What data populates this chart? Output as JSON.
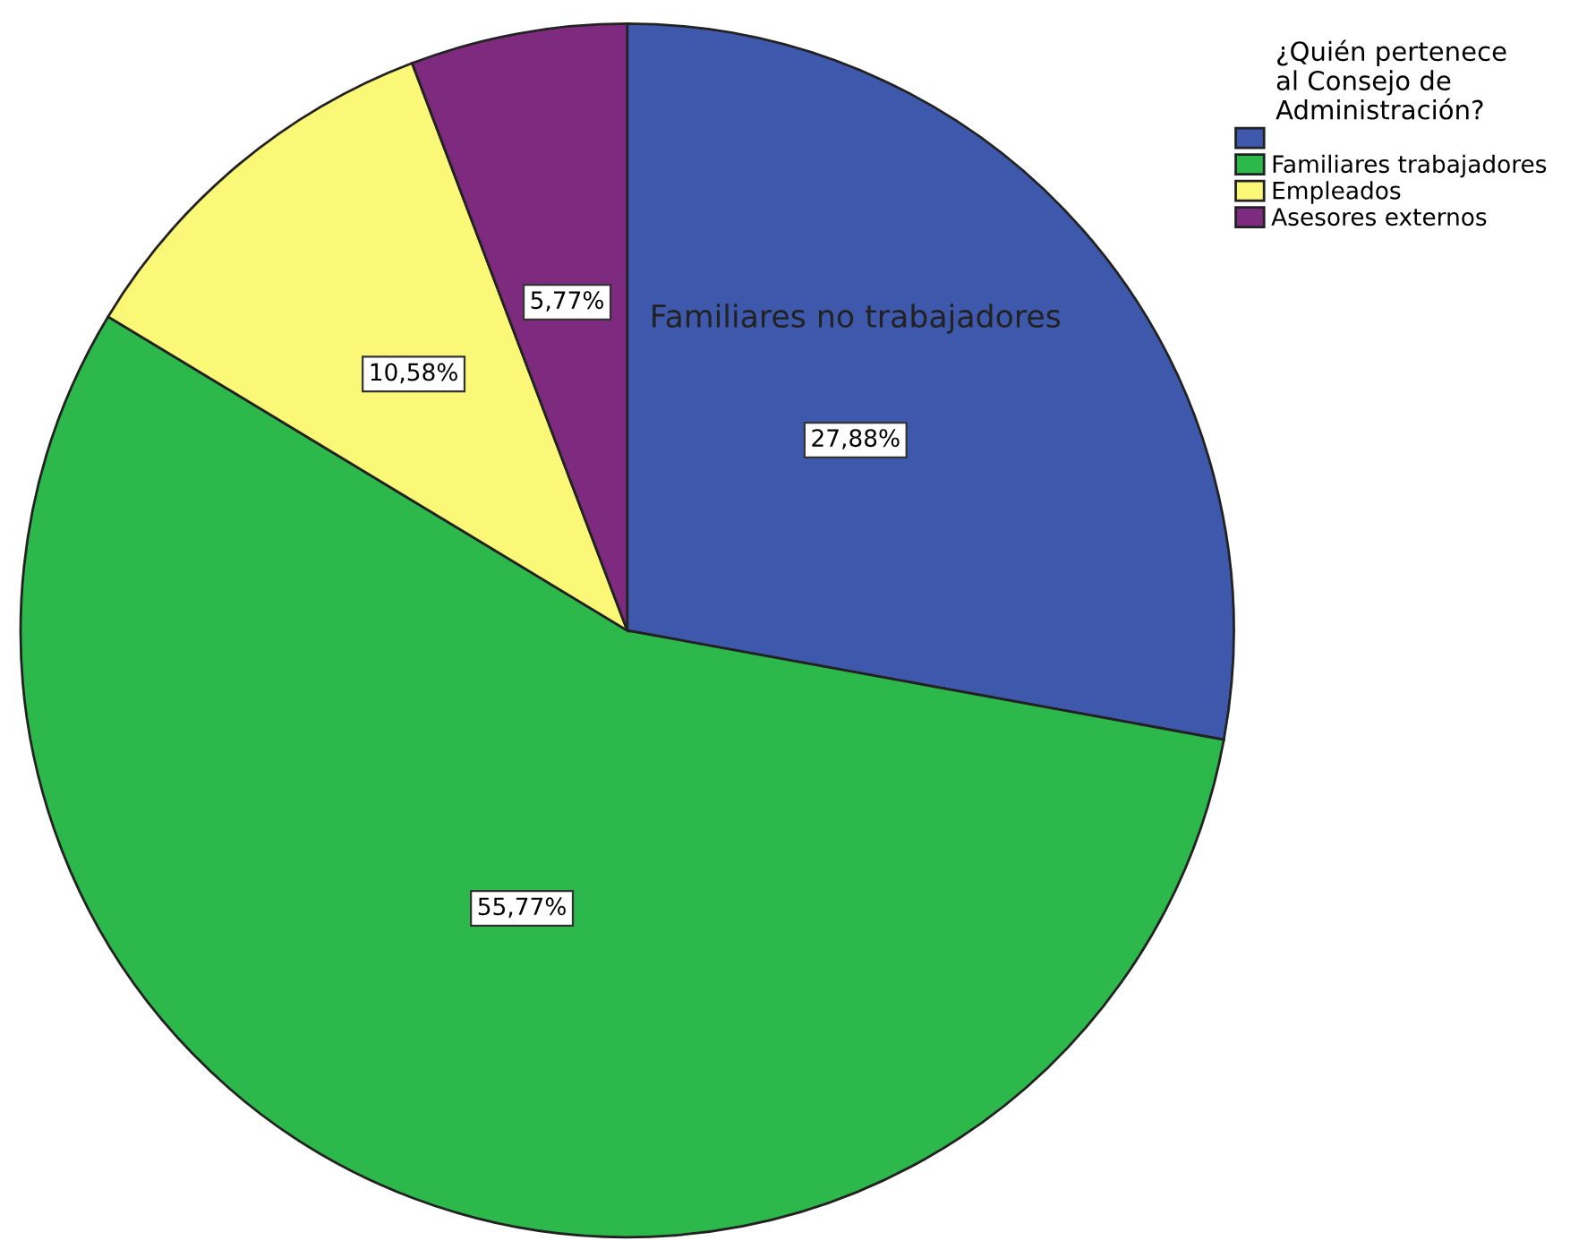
{
  "chart_data": {
    "type": "pie",
    "legend_title": "¿Quién pertenece\nal Consejo de\nAdministración?",
    "categories": [
      null,
      "Familiares trabajadores",
      "Empleados",
      "Asesores externos"
    ],
    "values": [
      27.88,
      55.77,
      10.58,
      5.77
    ],
    "value_labels": [
      "27,88%",
      "55,77%",
      "10,58%",
      "5,77%"
    ],
    "colors": [
      "#3e58ac",
      "#2db84b",
      "#fbf878",
      "#7e2a7e"
    ],
    "annotations": [
      "Familiares no trabajadores"
    ],
    "legend": "top right"
  }
}
